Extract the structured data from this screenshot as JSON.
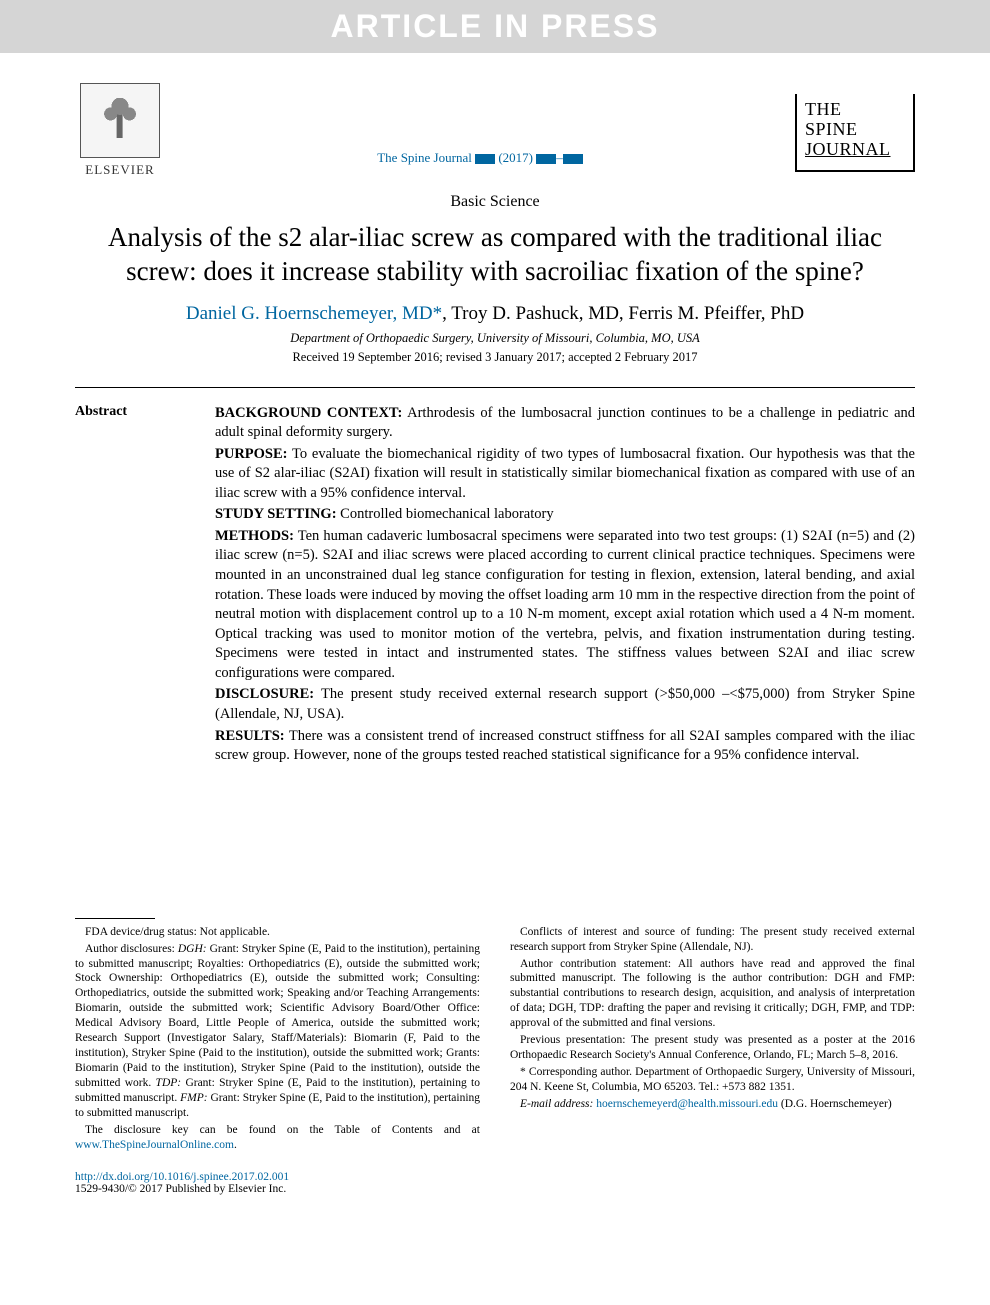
{
  "watermark": {
    "text": "ARTICLE IN PRESS"
  },
  "publisher": {
    "name": "ELSEVIER"
  },
  "citation": {
    "journal": "The Spine Journal",
    "placeholder": "(2017)"
  },
  "journal_logo": {
    "line1": "THE",
    "line2": "SPINE",
    "line3": "JOURNAL"
  },
  "section": {
    "type": "Basic Science"
  },
  "title": "Analysis of the s2 alar-iliac screw as compared with the traditional iliac screw: does it increase stability with sacroiliac fixation of the spine?",
  "authors": {
    "a1": {
      "name": "Daniel G. Hoernschemeyer, MD",
      "corr": "*"
    },
    "sep12": ", ",
    "a2": {
      "name": "Troy D. Pashuck, MD"
    },
    "sep23": ", ",
    "a3": {
      "name": "Ferris M. Pfeiffer, PhD"
    }
  },
  "affiliation": "Department of Orthopaedic Surgery, University of Missouri, Columbia, MO, USA",
  "dates": "Received 19 September 2016; revised 3 January 2017; accepted 2 February 2017",
  "abstract": {
    "label": "Abstract",
    "background": {
      "lead": "BACKGROUND CONTEXT:",
      "text": " Arthrodesis of the lumbosacral junction continues to be a challenge in pediatric and adult spinal deformity surgery."
    },
    "purpose": {
      "lead": "PURPOSE:",
      "text": " To evaluate the biomechanical rigidity of two types of lumbosacral fixation. Our hypothesis was that the use of S2 alar-iliac (S2AI) fixation will result in statistically similar biomechanical fixation as compared with use of an iliac screw with a 95% confidence interval."
    },
    "setting": {
      "lead": "STUDY SETTING:",
      "text": " Controlled biomechanical laboratory"
    },
    "methods": {
      "lead": "METHODS:",
      "text": " Ten human cadaveric lumbosacral specimens were separated into two test groups: (1) S2AI (n=5) and (2) iliac screw (n=5). S2AI and iliac screws were placed according to current clinical practice techniques. Specimens were mounted in an unconstrained dual leg stance configuration for testing in flexion, extension, lateral bending, and axial rotation. These loads were induced by moving the offset loading arm 10 mm in the respective direction from the point of neutral motion with displacement control up to a 10 N-m moment, except axial rotation which used a 4 N-m moment. Optical tracking was used to monitor motion of the vertebra, pelvis, and fixation instrumentation during testing. Specimens were tested in intact and instrumented states. The stiffness values between S2AI and iliac screw configurations were compared."
    },
    "disclosure": {
      "lead": "DISCLOSURE:",
      "text": " The present study received external research support (>$50,000 –<$75,000) from Stryker Spine (Allendale, NJ, USA)."
    },
    "results": {
      "lead": "RESULTS:",
      "text": " There was a consistent trend of increased construct stiffness for all S2AI samples compared with the iliac screw group. However, none of the groups tested reached statistical significance for a 95% confidence interval."
    }
  },
  "footnotes": {
    "left": {
      "fda": "FDA device/drug status: Not applicable.",
      "disclosures": "Author disclosures: DGH: Grant: Stryker Spine (E, Paid to the institution), pertaining to submitted manuscript; Royalties: Orthopediatrics (E), outside the submitted work; Stock Ownership: Orthopediatrics (E), outside the submitted work; Consulting: Orthopediatrics, outside the submitted work; Speaking and/or Teaching Arrangements: Biomarin, outside the submitted work; Scientific Advisory Board/Other Office: Medical Advisory Board, Little People of America, outside the submitted work; Research Support (Investigator Salary, Staff/Materials): Biomarin (F, Paid to the institution), Stryker Spine (Paid to the institution), outside the submitted work; Grants: Biomarin (Paid to the institution), Stryker Spine (Paid to the institution), outside the submitted work. TDP: Grant: Stryker Spine (E, Paid to the institution), pertaining to submitted manuscript. FMP: Grant: Stryker Spine (E, Paid to the institution), pertaining to submitted manuscript.",
      "disclosure_key_pre": "The disclosure key can be found on the Table of Contents and at ",
      "disclosure_key_link": "www.TheSpineJournalOnline.com",
      "disclosure_key_post": "."
    },
    "right": {
      "coi": "Conflicts of interest and source of funding: The present study received external research support from Stryker Spine (Allendale, NJ).",
      "contrib": "Author contribution statement: All authors have read and approved the final submitted manuscript. The following is the author contribution: DGH and FMP: substantial contributions to research design, acquisition, and analysis of interpretation of data; DGH, TDP: drafting the paper and revising it critically; DGH, FMP, and TDP: approval of the submitted and final versions.",
      "prev": "Previous presentation: The present study was presented as a poster at the 2016 Orthopaedic Research Society's Annual Conference, Orlando, FL; March 5–8, 2016.",
      "corr": "* Corresponding author. Department of Orthopaedic Surgery, University of Missouri, 204 N. Keene St, Columbia, MO 65203. Tel.: +573 882 1351.",
      "email_label": "E-mail address:",
      "email_link": "hoernschemeyerd@health.missouri.edu",
      "email_post": " (D.G. Hoernschemeyer)"
    }
  },
  "doi": {
    "link": "http://dx.doi.org/10.1016/j.spinee.2017.02.001",
    "copyright": "1529-9430/© 2017 Published by Elsevier Inc."
  },
  "colors": {
    "banner_bg": "#d5d5d5",
    "banner_text": "#ffffff",
    "link": "#0066a0",
    "text": "#000000"
  },
  "typography": {
    "title_fontsize": 27,
    "authors_fontsize": 19,
    "body_fontsize": 14.5,
    "footnote_fontsize": 11.5
  }
}
